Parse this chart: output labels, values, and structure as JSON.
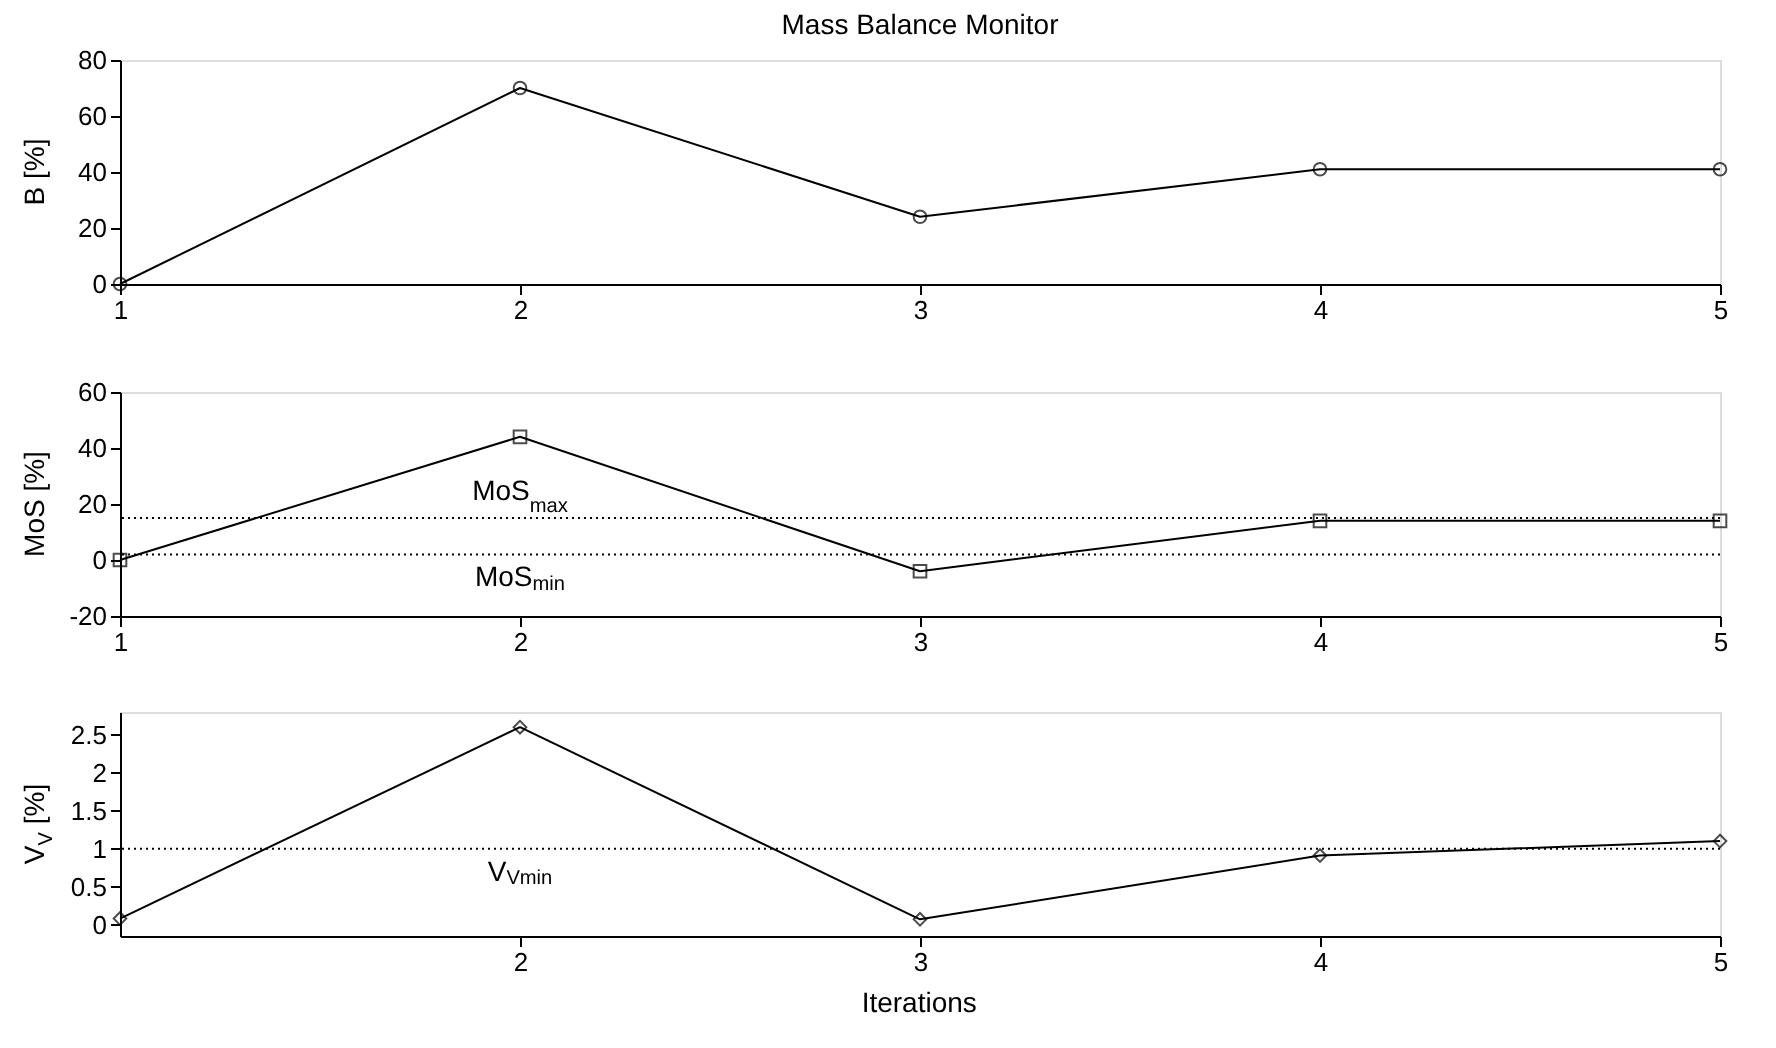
{
  "chart_data": [
    {
      "type": "line",
      "title": "Mass Balance Monitor",
      "ylabel": "B [%]",
      "x": [
        1,
        2,
        3,
        4,
        5
      ],
      "series": [
        {
          "color": "#000000",
          "values": [
            0,
            70,
            24,
            41,
            41
          ]
        }
      ],
      "marker": "circle",
      "line_style": "solid",
      "xlim": [
        1,
        5
      ],
      "xticks": [
        1,
        2,
        3,
        4,
        5
      ],
      "ylim": [
        0,
        80
      ],
      "yticks": [
        0,
        20,
        40,
        60,
        80
      ],
      "grid": false,
      "legend": false
    },
    {
      "type": "line",
      "ylabel": "MoS [%]",
      "x": [
        1,
        2,
        3,
        4,
        5
      ],
      "series": [
        {
          "color": "#000000",
          "values": [
            0,
            44,
            -4,
            14,
            14
          ]
        }
      ],
      "marker": "square",
      "line_style": "solid",
      "xlim": [
        1,
        5
      ],
      "xticks": [
        1,
        2,
        3,
        4,
        5
      ],
      "ylim": [
        -20,
        60
      ],
      "yticks": [
        -20,
        0,
        20,
        40,
        60
      ],
      "grid": false,
      "legend": false,
      "ref_lines": [
        {
          "axis": "y",
          "value": 15,
          "label": "MoS$_{max}$",
          "color": "#000000",
          "line_style": "dotted"
        },
        {
          "axis": "y",
          "value": 2,
          "label": "MoS$_{min}$",
          "color": "#000000",
          "line_style": "dotted"
        }
      ]
    },
    {
      "type": "line",
      "ylabel": "V$_{V}$ [%]",
      "xlabel": "Iterations",
      "x": [
        1,
        2,
        3,
        4,
        5
      ],
      "series": [
        {
          "color": "#000000",
          "values": [
            0.08,
            2.6,
            0.07,
            0.91,
            1.1
          ]
        }
      ],
      "marker": "diamond",
      "line_style": "solid",
      "xlim": [
        1,
        5
      ],
      "xticks": [
        2,
        3,
        4,
        5
      ],
      "ylim": [
        -0.15,
        2.8
      ],
      "yticks": [
        0,
        0.5,
        1,
        1.5,
        2,
        2.5
      ],
      "grid": false,
      "legend": false,
      "ref_lines": [
        {
          "axis": "y",
          "value": 1,
          "label": "V$_{Vmin}$",
          "color": "#000000",
          "line_style": "dotted"
        }
      ]
    }
  ]
}
